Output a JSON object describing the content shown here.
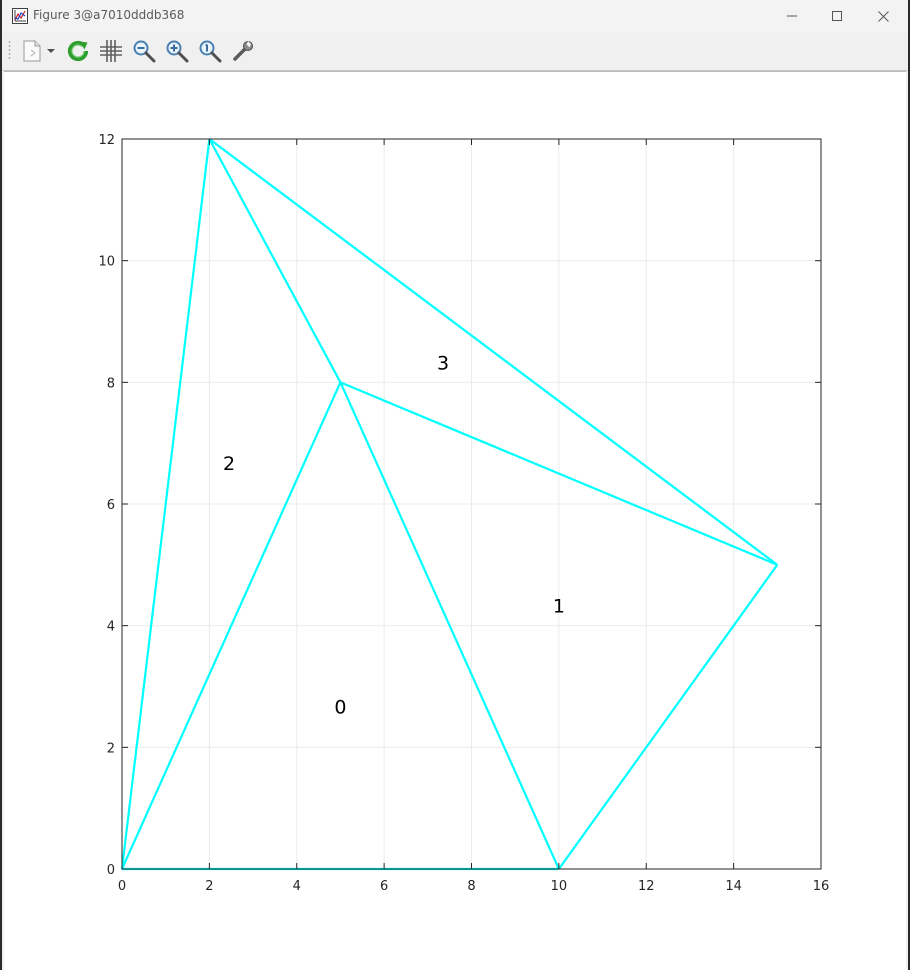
{
  "window": {
    "title": "Figure 3@a7010dddb368"
  },
  "toolbar": {
    "buttons": [
      {
        "name": "new-figure-button",
        "icon": "document-icon"
      },
      {
        "name": "dropdown-arrow-button",
        "icon": "chevron-down-icon"
      },
      {
        "name": "refresh-button",
        "icon": "refresh-icon"
      },
      {
        "name": "grid-button",
        "icon": "grid-icon"
      },
      {
        "name": "zoom-out-button",
        "icon": "zoom-out-icon"
      },
      {
        "name": "zoom-in-button",
        "icon": "zoom-in-icon"
      },
      {
        "name": "zoom-reset-button",
        "icon": "zoom-reset-icon"
      },
      {
        "name": "settings-button",
        "icon": "wrench-icon"
      }
    ]
  },
  "chart_data": {
    "type": "line",
    "title": "",
    "xlabel": "",
    "ylabel": "",
    "xlim": [
      0,
      16
    ],
    "ylim": [
      0,
      12
    ],
    "xticks": [
      0,
      2,
      4,
      6,
      8,
      10,
      12,
      14,
      16
    ],
    "yticks": [
      0,
      2,
      4,
      6,
      8,
      10,
      12
    ],
    "grid": true,
    "line_color": "#00ffff",
    "segments": [
      {
        "x": [
          0,
          10
        ],
        "y": [
          0,
          0
        ]
      },
      {
        "x": [
          10,
          5
        ],
        "y": [
          0,
          8
        ]
      },
      {
        "x": [
          5,
          0
        ],
        "y": [
          8,
          0
        ]
      },
      {
        "x": [
          10,
          15
        ],
        "y": [
          0,
          5
        ]
      },
      {
        "x": [
          15,
          5
        ],
        "y": [
          5,
          8
        ]
      },
      {
        "x": [
          0,
          2
        ],
        "y": [
          0,
          12
        ]
      },
      {
        "x": [
          2,
          5
        ],
        "y": [
          12,
          8
        ]
      },
      {
        "x": [
          2,
          15
        ],
        "y": [
          12,
          5
        ]
      }
    ],
    "labels": [
      {
        "text": "0",
        "x": 5.0,
        "y": 2.67
      },
      {
        "text": "1",
        "x": 10.0,
        "y": 4.33
      },
      {
        "text": "2",
        "x": 2.45,
        "y": 6.67
      },
      {
        "text": "3",
        "x": 7.35,
        "y": 8.33
      }
    ]
  }
}
